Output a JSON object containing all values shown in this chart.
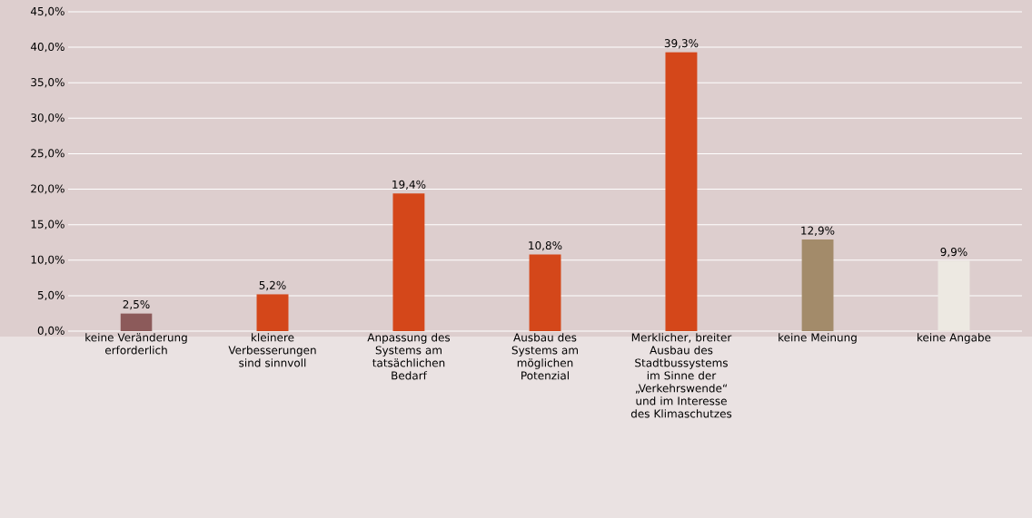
{
  "chart_data": {
    "type": "bar",
    "categories": [
      "keine Veränderung erforderlich",
      "kleinere Verbesserungen sind sinnvoll",
      "Anpassung des Systems am tatsächlichen Bedarf",
      "Ausbau des Systems am möglichen Potenzial",
      "Merklicher, breiter Ausbau des Stadtbussystems im Sinne der „Verkehrswende“ und im Interesse des Klimaschutzes",
      "keine Meinung",
      "keine Angabe"
    ],
    "values": [
      2.5,
      5.2,
      19.4,
      10.8,
      39.3,
      12.9,
      9.9
    ],
    "value_labels": [
      "2,5%",
      "5,2%",
      "19,4%",
      "10,8%",
      "39,3%",
      "12,9%",
      "9,9%"
    ],
    "colors": [
      "#8c5a5a",
      "#d4471a",
      "#d4471a",
      "#d4471a",
      "#d4471a",
      "#a38b6a",
      "#ede9e2"
    ],
    "ylim": [
      0,
      45
    ],
    "yticks": [
      {
        "value": 0,
        "label": "0,0%"
      },
      {
        "value": 5,
        "label": "5,0%"
      },
      {
        "value": 10,
        "label": "10,0%"
      },
      {
        "value": 15,
        "label": "15,0%"
      },
      {
        "value": 20,
        "label": "20,0%"
      },
      {
        "value": 25,
        "label": "25,0%"
      },
      {
        "value": 30,
        "label": "30,0%"
      },
      {
        "value": 35,
        "label": "35,0%"
      },
      {
        "value": 40,
        "label": "40,0%"
      },
      {
        "value": 45,
        "label": "45,0%"
      }
    ],
    "grid": "y"
  }
}
